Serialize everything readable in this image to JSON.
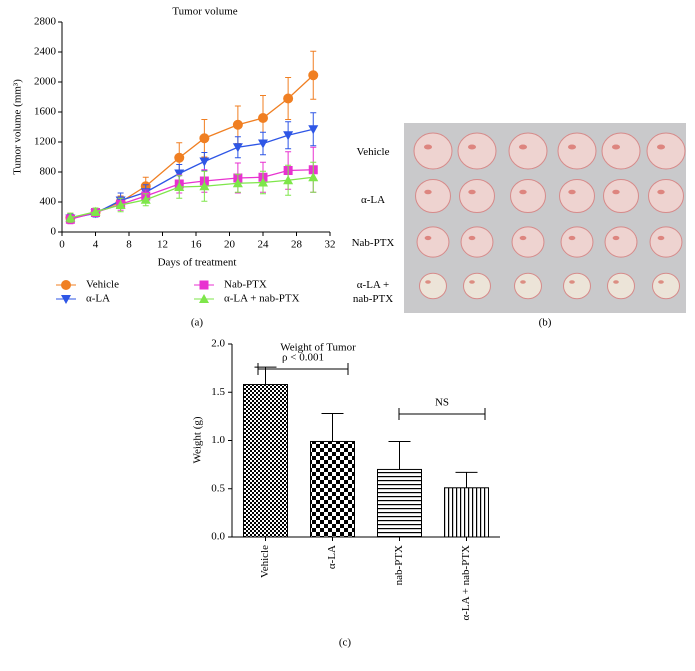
{
  "chart_data": [
    {
      "type": "line",
      "title": "Tumor volume",
      "x_label": "Days of treatment",
      "y_label": "Tumor volume (mm³)",
      "caption": "(a)",
      "x": [
        1,
        4,
        7,
        10,
        14,
        17,
        21,
        24,
        27,
        30
      ],
      "xlim": [
        0,
        32
      ],
      "xticks": [
        0,
        4,
        8,
        12,
        16,
        20,
        24,
        28,
        32
      ],
      "ylim": [
        0,
        2800
      ],
      "yticks": [
        0,
        400,
        800,
        1200,
        1600,
        2000,
        2400,
        2800
      ],
      "legend": "bottom",
      "series": [
        {
          "name": "Vehicle",
          "color": "#f07f22",
          "values": [
            190,
            260,
            400,
            610,
            990,
            1250,
            1430,
            1520,
            1780,
            2090
          ],
          "errors": [
            60,
            40,
            80,
            120,
            200,
            250,
            250,
            300,
            280,
            320
          ]
        },
        {
          "name": "α-LA",
          "color": "#2e56e6",
          "values": [
            180,
            250,
            420,
            530,
            780,
            940,
            1130,
            1180,
            1290,
            1370
          ],
          "errors": [
            60,
            50,
            100,
            100,
            120,
            120,
            140,
            150,
            180,
            220
          ]
        },
        {
          "name": "Nab-PTX",
          "color": "#e832d0",
          "values": [
            170,
            260,
            370,
            480,
            640,
            680,
            720,
            730,
            820,
            830
          ],
          "errors": [
            60,
            40,
            80,
            80,
            120,
            150,
            200,
            200,
            250,
            300
          ]
        },
        {
          "name": "α-LA + nab-PTX",
          "color": "#7ee64a",
          "values": [
            190,
            270,
            360,
            430,
            600,
            610,
            650,
            660,
            690,
            730
          ],
          "errors": [
            60,
            50,
            90,
            80,
            150,
            200,
            120,
            150,
            200,
            200
          ]
        }
      ]
    },
    {
      "type": "bar",
      "title": "Weight of Tumor",
      "y_label": "Weight (g)",
      "caption": "(c)",
      "categories": [
        "Vehicle",
        "α-LA",
        "nab-PTX",
        "α-LA + nab-PTX"
      ],
      "values": [
        1.58,
        0.99,
        0.7,
        0.51
      ],
      "errors": [
        0.18,
        0.29,
        0.29,
        0.16
      ],
      "ylim": [
        0,
        2.0
      ],
      "yticks": [
        {
          "value": 0,
          "label": "0.0"
        },
        {
          "value": 0.5,
          "label": "0.5"
        },
        {
          "value": 1,
          "label": "1.0"
        },
        {
          "value": 1.5,
          "label": "1.5"
        },
        {
          "value": 2,
          "label": "2.0"
        }
      ],
      "annotations": [
        "ρ < 0.001",
        "NS"
      ]
    }
  ],
  "photo": {
    "row_labels": [
      "Vehicle",
      "α-LA",
      "Nab-PTX",
      "α-LA + nab-PTX"
    ],
    "caption": "(b)"
  }
}
